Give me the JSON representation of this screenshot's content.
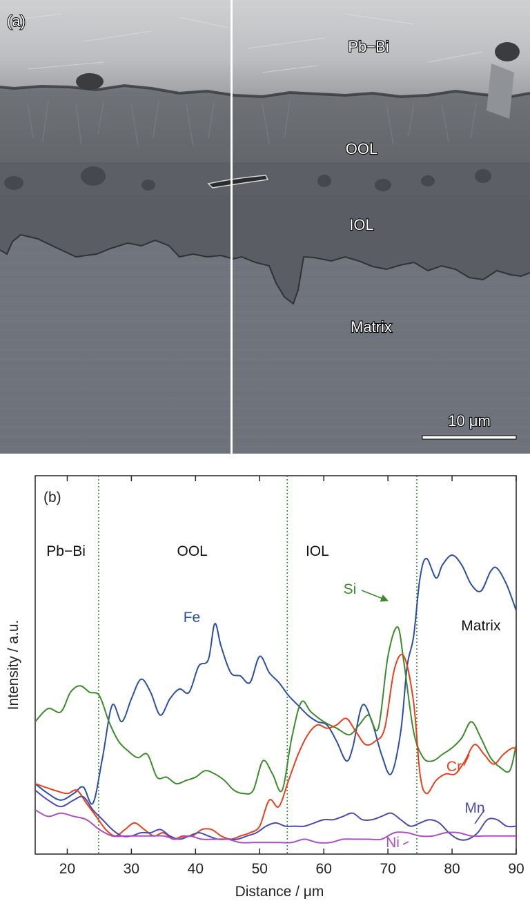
{
  "panel_a": {
    "tag": "(a)",
    "labels": {
      "pb_bi": "Pb−Bi",
      "ool": "OOL",
      "iol": "IOL",
      "matrix": "Matrix"
    },
    "scale_bar": "10 μm"
  },
  "chart_data": {
    "type": "line",
    "panel_tag": "(b)",
    "xlabel": "Distance / μm",
    "ylabel": "Intensity / a.u.",
    "xlim": [
      15,
      90
    ],
    "ylim": [
      0,
      100
    ],
    "xticks": [
      20,
      30,
      40,
      50,
      60,
      70,
      80,
      90
    ],
    "grid": false,
    "legend": "none (series labelled directly on plot)",
    "regions": [
      {
        "label": "Pb−Bi",
        "center": 19.8
      },
      {
        "label": "OOL",
        "center": 39.5
      },
      {
        "label": "IOL",
        "center": 59
      },
      {
        "label": "Matrix",
        "center": 84.5
      }
    ],
    "boundaries": [
      24.9,
      54.3,
      74.5
    ],
    "colors": {
      "Fe": "#2a4ea6",
      "Si": "#3a8c2a",
      "Cr": "#e8401c",
      "Mn": "#4a4aae",
      "Ni": "#a94fbf",
      "boundary": "#2e8b2e"
    },
    "series": [
      {
        "name": "Fe",
        "x": [
          15,
          17,
          19,
          21,
          22.5,
          24,
          25.5,
          27,
          28.5,
          30,
          31.5,
          33,
          34.5,
          36,
          37.5,
          39,
          40.5,
          42,
          43,
          44,
          45.5,
          47,
          48.5,
          50,
          51.5,
          53,
          54.5,
          56,
          57.5,
          59,
          60.5,
          62,
          63.5,
          64.5,
          66,
          67.5,
          69,
          70.5,
          72,
          73,
          74,
          75,
          76,
          77.5,
          78.5,
          80,
          81.5,
          83,
          84.5,
          86,
          87,
          88.5,
          90
        ],
        "y": [
          19,
          16,
          14,
          16,
          18,
          13,
          27,
          43,
          38,
          45,
          51,
          47,
          40,
          45,
          48,
          47,
          55,
          57,
          68,
          61,
          53,
          52,
          50,
          58,
          53,
          50,
          46,
          43,
          40,
          38,
          37,
          32,
          26,
          30,
          43,
          38,
          28,
          22,
          35,
          55,
          64,
          82,
          88,
          82,
          86,
          89,
          86,
          80,
          78,
          84,
          85,
          80,
          72
        ]
      },
      {
        "name": "Si",
        "x": [
          15,
          17,
          19,
          20.5,
          22,
          23.5,
          25,
          26.5,
          28,
          29.5,
          31,
          32.5,
          34,
          35.5,
          37,
          38.5,
          40,
          41.5,
          43,
          44.5,
          46,
          47.5,
          49,
          50.5,
          52,
          53.5,
          55,
          56.5,
          58,
          60,
          62,
          64,
          65.5,
          67,
          68.5,
          70,
          71.5,
          72.5,
          74,
          75.5,
          77,
          78.5,
          80,
          81.5,
          83,
          84.5,
          86,
          87.5,
          89,
          90
        ],
        "y": [
          38,
          42,
          41,
          47,
          49,
          47,
          46,
          38,
          32,
          29,
          27,
          28,
          21,
          21,
          19,
          20,
          21,
          23,
          22,
          20,
          17,
          16,
          17,
          26,
          22,
          17,
          33,
          44,
          41,
          38,
          36,
          34,
          37,
          40,
          36,
          58,
          67,
          56,
          35,
          27,
          26,
          28,
          30,
          33,
          38,
          33,
          27,
          24,
          23,
          31
        ]
      },
      {
        "name": "Cr",
        "x": [
          15,
          16.5,
          18,
          20,
          21.5,
          23,
          24.5,
          26,
          27.5,
          29,
          30.5,
          32,
          33.5,
          35,
          36.5,
          38,
          39.5,
          41,
          42.5,
          44,
          45.5,
          47,
          48.5,
          50,
          51.5,
          53,
          54.5,
          56,
          57.5,
          59,
          60.5,
          62,
          63.5,
          65,
          66.5,
          68,
          69.5,
          71,
          72.5,
          74,
          75,
          76,
          77.5,
          79,
          80.5,
          82,
          83.5,
          85,
          86.5,
          88,
          89.5,
          90
        ],
        "y": [
          19,
          18,
          17,
          16,
          17,
          13,
          9,
          5,
          3,
          5,
          7,
          5,
          3,
          4,
          2,
          3,
          3,
          5,
          5,
          3,
          2,
          3,
          4,
          6,
          14,
          12,
          20,
          28,
          34,
          37,
          36,
          37,
          39,
          35,
          31,
          32,
          36,
          54,
          58,
          44,
          22,
          16,
          20,
          22,
          22,
          26,
          31,
          28,
          25,
          28,
          30,
          29
        ]
      },
      {
        "name": "Mn",
        "x": [
          15,
          17,
          19,
          21,
          22.5,
          24,
          25.5,
          27,
          28.5,
          30,
          31.5,
          33,
          34.5,
          36,
          37.5,
          39,
          40.5,
          42,
          43.5,
          45,
          46.5,
          48,
          49.5,
          51,
          52.5,
          54,
          55.5,
          57,
          58.5,
          60,
          61.5,
          63,
          64.5,
          66,
          67.5,
          69,
          70.5,
          72,
          73.5,
          75,
          76.5,
          78,
          79.5,
          81,
          82.5,
          84,
          85.5,
          87,
          88.5,
          90
        ],
        "y": [
          17,
          14,
          12,
          14,
          15,
          11,
          8,
          5,
          3,
          3,
          4,
          4,
          5,
          3,
          2,
          3,
          4,
          3,
          2,
          2,
          2,
          3,
          4,
          6,
          7,
          6,
          6,
          6,
          7,
          8,
          8,
          9,
          10,
          8,
          8,
          9,
          10,
          8,
          6,
          7,
          8,
          7,
          4,
          2,
          2,
          4,
          8,
          8,
          6,
          6
        ]
      },
      {
        "name": "Ni",
        "x": [
          15,
          17,
          19,
          21,
          23,
          25,
          27,
          29,
          31,
          33,
          35,
          37,
          39,
          41,
          43,
          45,
          47,
          49,
          51,
          53,
          55,
          57,
          59,
          61,
          63,
          65,
          67,
          69,
          71,
          73,
          75,
          77,
          79,
          81,
          83,
          85,
          87,
          89,
          90
        ],
        "y": [
          11,
          9,
          10,
          9,
          8,
          5,
          3,
          3,
          3,
          3,
          3,
          2,
          3,
          2,
          2,
          2,
          1,
          1,
          1,
          1,
          1,
          2,
          1,
          1,
          2,
          2,
          2,
          2,
          4,
          4,
          3,
          3,
          4,
          4,
          3,
          3,
          3,
          3,
          3
        ]
      }
    ],
    "annotations": [
      {
        "text": "Fe",
        "series": "Fe"
      },
      {
        "text": "Si",
        "series": "Si",
        "arrow": true
      },
      {
        "text": "Cr",
        "series": "Cr",
        "leader": true
      },
      {
        "text": "Mn",
        "series": "Mn",
        "leader": true
      },
      {
        "text": "Ni",
        "series": "Ni",
        "leader": true
      }
    ]
  }
}
